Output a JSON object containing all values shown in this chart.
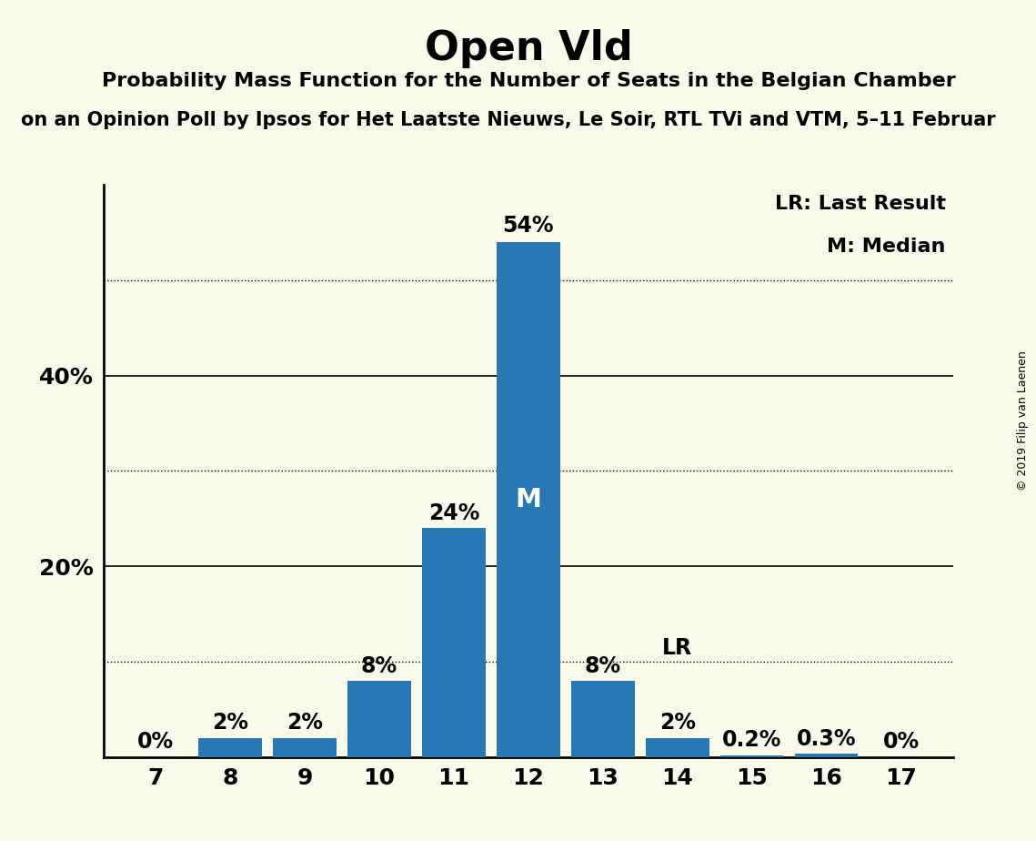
{
  "title": "Open Vld",
  "subtitle": "Probability Mass Function for the Number of Seats in the Belgian Chamber",
  "subtitle2": "on an Opinion Poll by Ipsos for Het Laatste Nieuws, Le Soir, RTL TVi and VTM, 5–11 Februar",
  "copyright": "© 2019 Filip van Laenen",
  "seats": [
    7,
    8,
    9,
    10,
    11,
    12,
    13,
    14,
    15,
    16,
    17
  ],
  "values": [
    0.0,
    2.0,
    2.0,
    8.0,
    24.0,
    54.0,
    8.0,
    2.0,
    0.2,
    0.3,
    0.0
  ],
  "labels": [
    "0%",
    "2%",
    "2%",
    "8%",
    "24%",
    "54%",
    "8%",
    "2%",
    "0.2%",
    "0.3%",
    "0%"
  ],
  "bar_color": "#2878b5",
  "bg_color": "#fafaeb",
  "median_seat": 12,
  "lr_seat": 14,
  "ylim": [
    0,
    60
  ],
  "solid_gridlines": [
    20,
    40
  ],
  "dotted_gridlines": [
    10,
    30,
    50
  ],
  "legend_lr": "LR: Last Result",
  "legend_m": "M: Median",
  "title_fontsize": 32,
  "subtitle_fontsize": 16,
  "subtitle2_fontsize": 15,
  "label_fontsize": 16,
  "axis_fontsize": 18,
  "legend_fontsize": 16,
  "ytick_labels": [
    "",
    "20%",
    "40%"
  ],
  "ytick_positions": [
    0,
    20,
    40
  ]
}
